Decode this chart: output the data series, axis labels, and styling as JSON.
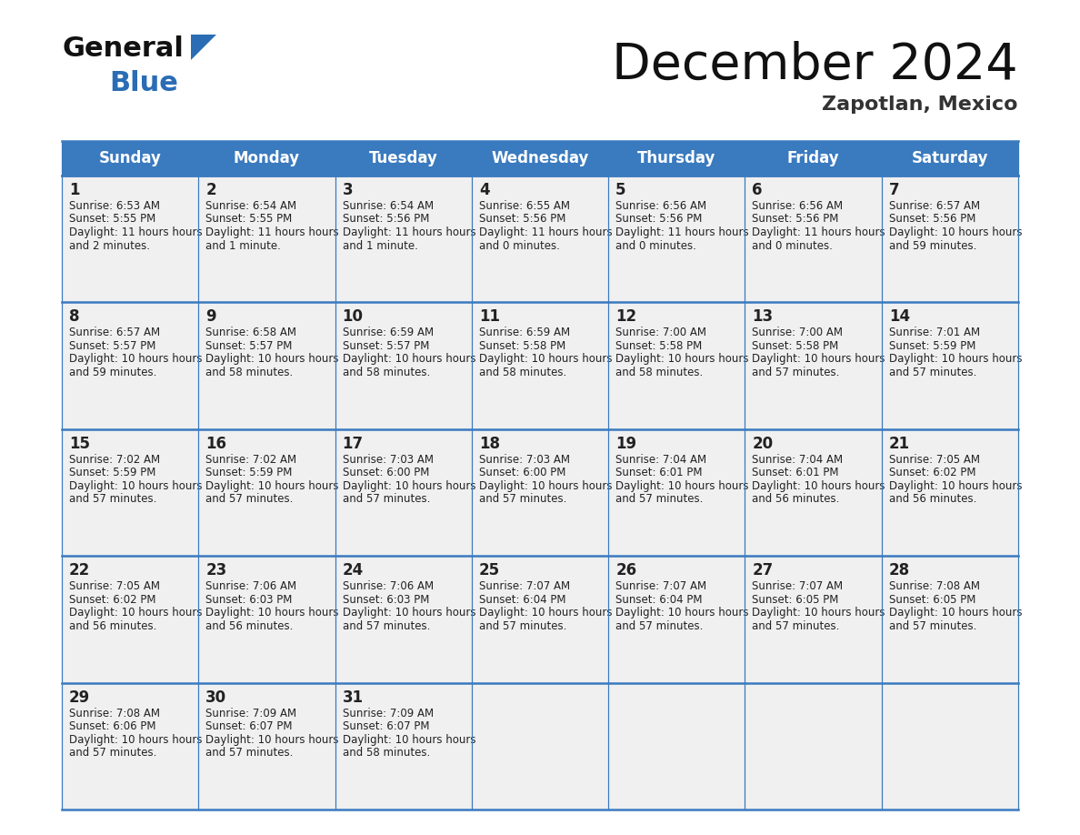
{
  "title": "December 2024",
  "subtitle": "Zapotlan, Mexico",
  "header_color": "#3a7abf",
  "header_text_color": "#ffffff",
  "cell_bg_color": "#f0f0f0",
  "border_color": "#3a7abf",
  "text_color": "#222222",
  "days_of_week": [
    "Sunday",
    "Monday",
    "Tuesday",
    "Wednesday",
    "Thursday",
    "Friday",
    "Saturday"
  ],
  "calendar_data": [
    [
      {
        "day": 1,
        "sunrise": "6:53 AM",
        "sunset": "5:55 PM",
        "daylight": "11 hours and 2 minutes."
      },
      {
        "day": 2,
        "sunrise": "6:54 AM",
        "sunset": "5:55 PM",
        "daylight": "11 hours and 1 minute."
      },
      {
        "day": 3,
        "sunrise": "6:54 AM",
        "sunset": "5:56 PM",
        "daylight": "11 hours and 1 minute."
      },
      {
        "day": 4,
        "sunrise": "6:55 AM",
        "sunset": "5:56 PM",
        "daylight": "11 hours and 0 minutes."
      },
      {
        "day": 5,
        "sunrise": "6:56 AM",
        "sunset": "5:56 PM",
        "daylight": "11 hours and 0 minutes."
      },
      {
        "day": 6,
        "sunrise": "6:56 AM",
        "sunset": "5:56 PM",
        "daylight": "11 hours and 0 minutes."
      },
      {
        "day": 7,
        "sunrise": "6:57 AM",
        "sunset": "5:56 PM",
        "daylight": "10 hours and 59 minutes."
      }
    ],
    [
      {
        "day": 8,
        "sunrise": "6:57 AM",
        "sunset": "5:57 PM",
        "daylight": "10 hours and 59 minutes."
      },
      {
        "day": 9,
        "sunrise": "6:58 AM",
        "sunset": "5:57 PM",
        "daylight": "10 hours and 58 minutes."
      },
      {
        "day": 10,
        "sunrise": "6:59 AM",
        "sunset": "5:57 PM",
        "daylight": "10 hours and 58 minutes."
      },
      {
        "day": 11,
        "sunrise": "6:59 AM",
        "sunset": "5:58 PM",
        "daylight": "10 hours and 58 minutes."
      },
      {
        "day": 12,
        "sunrise": "7:00 AM",
        "sunset": "5:58 PM",
        "daylight": "10 hours and 58 minutes."
      },
      {
        "day": 13,
        "sunrise": "7:00 AM",
        "sunset": "5:58 PM",
        "daylight": "10 hours and 57 minutes."
      },
      {
        "day": 14,
        "sunrise": "7:01 AM",
        "sunset": "5:59 PM",
        "daylight": "10 hours and 57 minutes."
      }
    ],
    [
      {
        "day": 15,
        "sunrise": "7:02 AM",
        "sunset": "5:59 PM",
        "daylight": "10 hours and 57 minutes."
      },
      {
        "day": 16,
        "sunrise": "7:02 AM",
        "sunset": "5:59 PM",
        "daylight": "10 hours and 57 minutes."
      },
      {
        "day": 17,
        "sunrise": "7:03 AM",
        "sunset": "6:00 PM",
        "daylight": "10 hours and 57 minutes."
      },
      {
        "day": 18,
        "sunrise": "7:03 AM",
        "sunset": "6:00 PM",
        "daylight": "10 hours and 57 minutes."
      },
      {
        "day": 19,
        "sunrise": "7:04 AM",
        "sunset": "6:01 PM",
        "daylight": "10 hours and 57 minutes."
      },
      {
        "day": 20,
        "sunrise": "7:04 AM",
        "sunset": "6:01 PM",
        "daylight": "10 hours and 56 minutes."
      },
      {
        "day": 21,
        "sunrise": "7:05 AM",
        "sunset": "6:02 PM",
        "daylight": "10 hours and 56 minutes."
      }
    ],
    [
      {
        "day": 22,
        "sunrise": "7:05 AM",
        "sunset": "6:02 PM",
        "daylight": "10 hours and 56 minutes."
      },
      {
        "day": 23,
        "sunrise": "7:06 AM",
        "sunset": "6:03 PM",
        "daylight": "10 hours and 56 minutes."
      },
      {
        "day": 24,
        "sunrise": "7:06 AM",
        "sunset": "6:03 PM",
        "daylight": "10 hours and 57 minutes."
      },
      {
        "day": 25,
        "sunrise": "7:07 AM",
        "sunset": "6:04 PM",
        "daylight": "10 hours and 57 minutes."
      },
      {
        "day": 26,
        "sunrise": "7:07 AM",
        "sunset": "6:04 PM",
        "daylight": "10 hours and 57 minutes."
      },
      {
        "day": 27,
        "sunrise": "7:07 AM",
        "sunset": "6:05 PM",
        "daylight": "10 hours and 57 minutes."
      },
      {
        "day": 28,
        "sunrise": "7:08 AM",
        "sunset": "6:05 PM",
        "daylight": "10 hours and 57 minutes."
      }
    ],
    [
      {
        "day": 29,
        "sunrise": "7:08 AM",
        "sunset": "6:06 PM",
        "daylight": "10 hours and 57 minutes."
      },
      {
        "day": 30,
        "sunrise": "7:09 AM",
        "sunset": "6:07 PM",
        "daylight": "10 hours and 57 minutes."
      },
      {
        "day": 31,
        "sunrise": "7:09 AM",
        "sunset": "6:07 PM",
        "daylight": "10 hours and 58 minutes."
      },
      null,
      null,
      null,
      null
    ]
  ],
  "logo_general_color": "#111111",
  "logo_blue_color": "#2a6db5",
  "logo_triangle_color": "#2a6db5",
  "title_fontsize": 40,
  "subtitle_fontsize": 16,
  "day_header_fontsize": 12,
  "day_num_fontsize": 12,
  "cell_text_fontsize": 8.5
}
